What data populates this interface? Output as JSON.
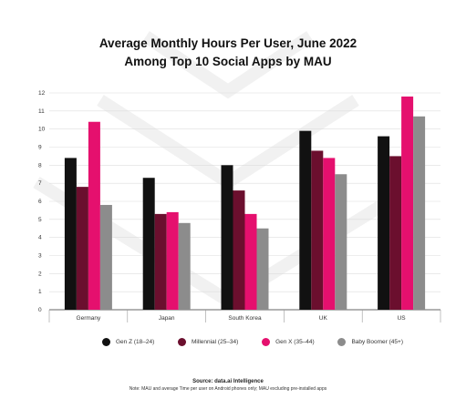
{
  "chart_data": {
    "type": "bar",
    "title": "Average Monthly Hours Per User, June 2022",
    "subtitle": "Among Top 10 Social Apps by MAU",
    "xlabel": "",
    "ylabel": "",
    "ylim": [
      0,
      12
    ],
    "yticks": [
      "0",
      "1",
      "2",
      "3",
      "4",
      "5",
      "6",
      "7",
      "8",
      "9",
      "10",
      "11",
      "12"
    ],
    "grid": true,
    "legend_position": "bottom",
    "categories": [
      "Germany",
      "Japan",
      "South Korea",
      "UK",
      "US"
    ],
    "series": [
      {
        "name": "Gen Z (18–24)",
        "color": "#111111",
        "values": [
          8.4,
          7.3,
          8.0,
          9.9,
          9.6
        ]
      },
      {
        "name": "Millennial (25–34)",
        "color": "#6b0f2e",
        "values": [
          6.8,
          5.3,
          6.6,
          8.8,
          8.5
        ]
      },
      {
        "name": "Gen X (35–44)",
        "color": "#e5106e",
        "values": [
          10.4,
          5.4,
          5.3,
          8.4,
          11.8
        ]
      },
      {
        "name": "Baby Boomer (45+)",
        "color": "#8c8c8c",
        "values": [
          5.8,
          4.8,
          4.5,
          7.5,
          10.7
        ]
      }
    ]
  },
  "footer": {
    "source": "Source: data.ai Intelligence",
    "note": "Note: MAU and average Time per user on Android phones only; MAU excluding pre-installed apps"
  }
}
